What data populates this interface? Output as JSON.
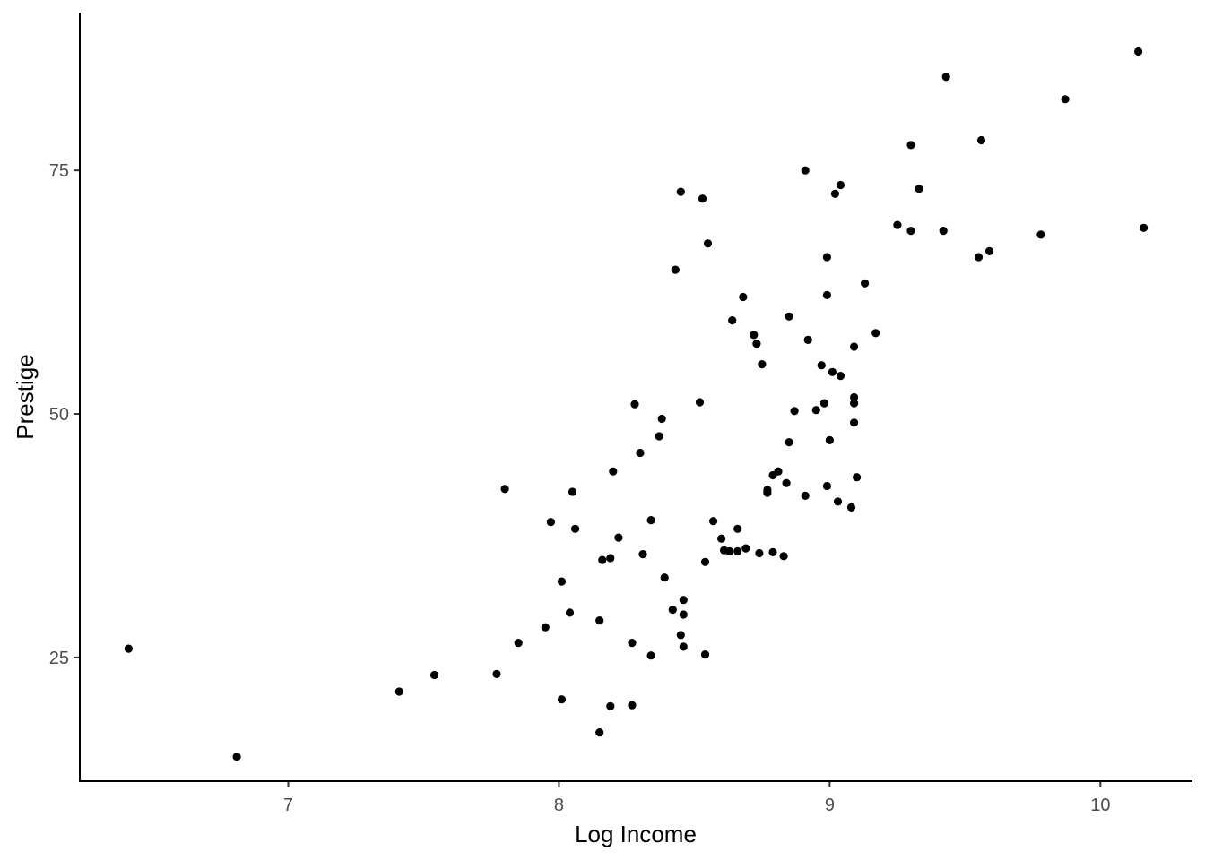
{
  "chart_data": {
    "type": "scatter",
    "title": "",
    "xlabel": "Log Income",
    "ylabel": "Prestige",
    "xlim": [
      6.23,
      10.34
    ],
    "ylim": [
      12.3,
      91.2
    ],
    "xticks": [
      7,
      8,
      9,
      10
    ],
    "yticks": [
      25,
      50,
      75
    ],
    "grid": false,
    "point_color": "#000000",
    "points": [
      [
        6.41,
        25.9
      ],
      [
        6.81,
        14.8
      ],
      [
        7.41,
        21.5
      ],
      [
        7.54,
        23.2
      ],
      [
        7.77,
        23.3
      ],
      [
        7.85,
        26.5
      ],
      [
        7.8,
        42.3
      ],
      [
        7.95,
        28.1
      ],
      [
        7.97,
        38.9
      ],
      [
        8.01,
        20.7
      ],
      [
        8.01,
        32.8
      ],
      [
        8.04,
        29.6
      ],
      [
        8.05,
        42.0
      ],
      [
        8.06,
        38.2
      ],
      [
        8.15,
        17.3
      ],
      [
        8.15,
        28.8
      ],
      [
        8.16,
        35.0
      ],
      [
        8.19,
        20.0
      ],
      [
        8.19,
        35.2
      ],
      [
        8.2,
        44.1
      ],
      [
        8.22,
        37.3
      ],
      [
        8.27,
        26.5
      ],
      [
        8.27,
        20.1
      ],
      [
        8.28,
        51.0
      ],
      [
        8.3,
        46.0
      ],
      [
        8.31,
        35.6
      ],
      [
        8.34,
        25.2
      ],
      [
        8.34,
        39.1
      ],
      [
        8.37,
        47.7
      ],
      [
        8.38,
        49.5
      ],
      [
        8.39,
        33.2
      ],
      [
        8.42,
        29.9
      ],
      [
        8.43,
        64.8
      ],
      [
        8.45,
        27.3
      ],
      [
        8.45,
        72.8
      ],
      [
        8.46,
        26.1
      ],
      [
        8.46,
        29.4
      ],
      [
        8.46,
        30.9
      ],
      [
        8.52,
        51.2
      ],
      [
        8.53,
        72.1
      ],
      [
        8.54,
        34.8
      ],
      [
        8.54,
        25.3
      ],
      [
        8.55,
        67.5
      ],
      [
        8.57,
        39.0
      ],
      [
        8.6,
        37.2
      ],
      [
        8.61,
        36.0
      ],
      [
        8.63,
        35.9
      ],
      [
        8.64,
        59.6
      ],
      [
        8.66,
        35.9
      ],
      [
        8.66,
        38.2
      ],
      [
        8.68,
        62.0
      ],
      [
        8.69,
        36.2
      ],
      [
        8.72,
        58.1
      ],
      [
        8.73,
        57.2
      ],
      [
        8.74,
        35.7
      ],
      [
        8.75,
        55.1
      ],
      [
        8.77,
        42.2
      ],
      [
        8.77,
        41.9
      ],
      [
        8.79,
        35.8
      ],
      [
        8.79,
        43.7
      ],
      [
        8.81,
        44.1
      ],
      [
        8.83,
        35.4
      ],
      [
        8.84,
        42.9
      ],
      [
        8.85,
        47.1
      ],
      [
        8.85,
        60.0
      ],
      [
        8.87,
        50.3
      ],
      [
        8.91,
        75.0
      ],
      [
        8.91,
        41.6
      ],
      [
        8.92,
        57.6
      ],
      [
        8.95,
        50.4
      ],
      [
        8.97,
        55.0
      ],
      [
        8.98,
        51.1
      ],
      [
        8.99,
        66.1
      ],
      [
        8.99,
        62.2
      ],
      [
        8.99,
        42.6
      ],
      [
        9.0,
        47.3
      ],
      [
        9.01,
        54.3
      ],
      [
        9.02,
        72.6
      ],
      [
        9.03,
        41.0
      ],
      [
        9.04,
        73.5
      ],
      [
        9.04,
        53.9
      ],
      [
        9.08,
        40.4
      ],
      [
        9.09,
        56.9
      ],
      [
        9.09,
        49.1
      ],
      [
        9.09,
        51.1
      ],
      [
        9.09,
        51.7
      ],
      [
        9.1,
        43.5
      ],
      [
        9.13,
        63.4
      ],
      [
        9.17,
        58.3
      ],
      [
        9.25,
        69.4
      ],
      [
        9.3,
        68.8
      ],
      [
        9.3,
        77.6
      ],
      [
        9.33,
        73.1
      ],
      [
        9.42,
        68.8
      ],
      [
        9.43,
        84.6
      ],
      [
        9.55,
        66.1
      ],
      [
        9.56,
        78.1
      ],
      [
        9.59,
        66.7
      ],
      [
        9.78,
        68.4
      ],
      [
        9.87,
        82.3
      ],
      [
        10.14,
        87.2
      ],
      [
        10.16,
        69.1
      ]
    ]
  }
}
